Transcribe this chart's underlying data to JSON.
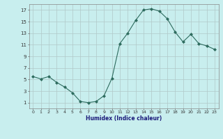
{
  "x": [
    0,
    1,
    2,
    3,
    4,
    5,
    6,
    7,
    8,
    9,
    10,
    11,
    12,
    13,
    14,
    15,
    16,
    17,
    18,
    19,
    20,
    21,
    22,
    23
  ],
  "y": [
    5.5,
    5.1,
    5.5,
    4.5,
    3.7,
    2.7,
    1.2,
    1.0,
    1.2,
    2.2,
    5.2,
    11.2,
    13.0,
    15.2,
    17.0,
    17.2,
    16.8,
    15.5,
    13.2,
    11.5,
    12.8,
    11.2,
    10.8,
    10.2
  ],
  "line_color": "#2d6b5e",
  "marker": "D",
  "marker_size": 2.0,
  "bg_color": "#c8eeee",
  "grid_major_color": "#b0c8c8",
  "grid_minor_color": "#d8e8e8",
  "xlabel": "Humidex (Indice chaleur)",
  "yticks": [
    1,
    3,
    5,
    7,
    9,
    11,
    13,
    15,
    17
  ],
  "xticks": [
    0,
    1,
    2,
    3,
    4,
    5,
    6,
    7,
    8,
    9,
    10,
    11,
    12,
    13,
    14,
    15,
    16,
    17,
    18,
    19,
    20,
    21,
    22,
    23
  ],
  "ylim": [
    0,
    18
  ],
  "xlim": [
    -0.5,
    23.5
  ]
}
